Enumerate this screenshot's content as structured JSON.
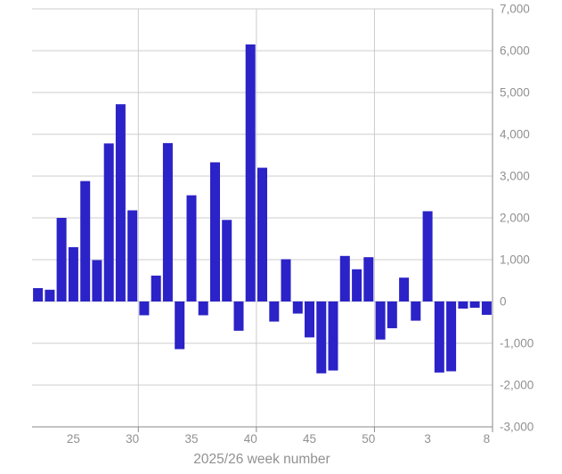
{
  "chart_data": {
    "type": "bar",
    "title": "",
    "xlabel": "2025/26 week number",
    "ylabel": "",
    "categories": [
      "22",
      "23",
      "24",
      "25",
      "26",
      "27",
      "28",
      "29",
      "30",
      "31",
      "32",
      "33",
      "34",
      "35",
      "36",
      "37",
      "38",
      "39",
      "40",
      "41",
      "42",
      "43",
      "44",
      "45",
      "46",
      "47",
      "48",
      "49",
      "50",
      "51",
      "52",
      "1",
      "2",
      "3",
      "4",
      "5",
      "6",
      "7",
      "8"
    ],
    "values": [
      320,
      280,
      2000,
      1300,
      2880,
      990,
      3780,
      4720,
      2180,
      -330,
      620,
      3790,
      -1140,
      2540,
      -330,
      3330,
      1950,
      -700,
      6150,
      3200,
      -480,
      1010,
      -290,
      -860,
      -1720,
      -1650,
      1090,
      770,
      1060,
      -910,
      -640,
      570,
      -460,
      2160,
      -1700,
      -1670,
      -170,
      -150,
      -320
    ],
    "x_tick_labels": [
      "25",
      "30",
      "35",
      "40",
      "45",
      "50",
      "3",
      "8"
    ],
    "x_tick_indices": [
      3,
      8,
      13,
      18,
      23,
      28,
      33,
      38
    ],
    "y_tick_labels": [
      "7,000",
      "6,000",
      "5,000",
      "4,000",
      "3,000",
      "2,000",
      "1,000",
      "0",
      "-1,000",
      "-2,000",
      "-3,000"
    ],
    "y_ticks": [
      7000,
      6000,
      5000,
      4000,
      3000,
      2000,
      1000,
      0,
      -1000,
      -2000,
      -3000
    ],
    "ylim": [
      -3000,
      7000
    ],
    "vertical_grid_boundaries": [
      9,
      19,
      29,
      39
    ],
    "grid": true,
    "legend_position": "none",
    "bar_color": "#2b22c7",
    "gridline_color": "#cccccc",
    "axis_line_color": "#8a8a8a",
    "label_color": "#919191",
    "background_color": "#ffffff"
  }
}
